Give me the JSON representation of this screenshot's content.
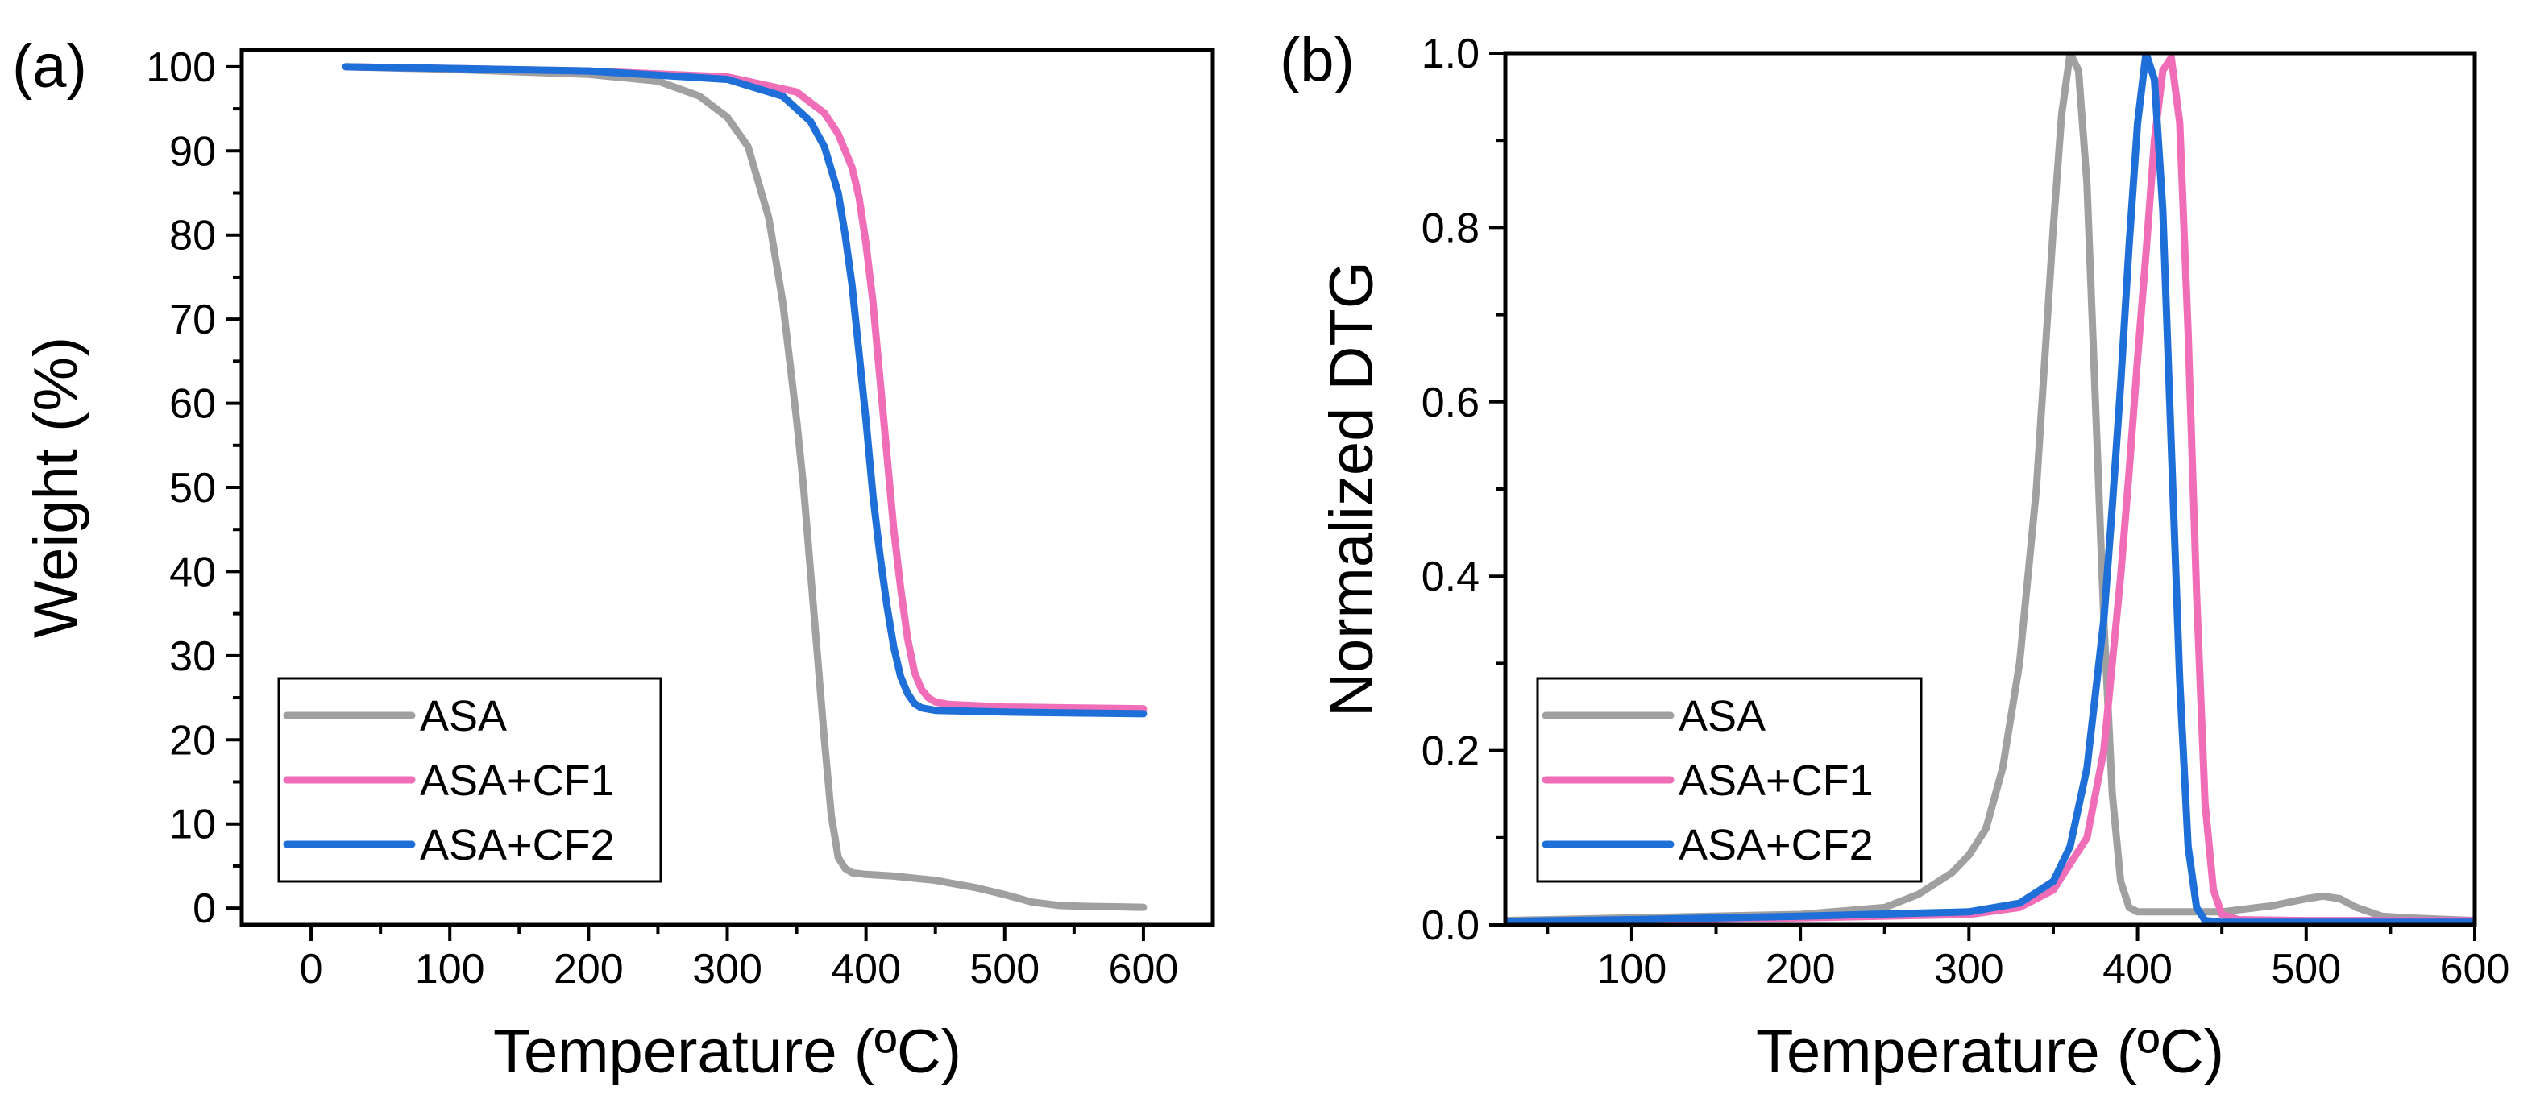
{
  "chart_data": [
    {
      "type": "line",
      "panel_label": "(a)",
      "xlabel": "Temperature (ºC)",
      "ylabel": "Weight (%)",
      "xlim": [
        -50,
        650
      ],
      "ylim": [
        -2,
        102
      ],
      "xticks": [
        0,
        100,
        200,
        300,
        400,
        500,
        600
      ],
      "xtick_labels": [
        "0",
        "100",
        "200",
        "300",
        "400",
        "500",
        "600"
      ],
      "yticks": [
        0,
        10,
        20,
        30,
        40,
        50,
        60,
        70,
        80,
        90,
        100
      ],
      "ytick_labels": [
        "0",
        "10",
        "20",
        "30",
        "40",
        "50",
        "60",
        "70",
        "80",
        "90",
        "100"
      ],
      "legend": "bottom-left",
      "series": [
        {
          "name": "ASA",
          "color": "#A0A0A0",
          "x": [
            25,
            100,
            200,
            250,
            280,
            300,
            315,
            330,
            340,
            350,
            355,
            360,
            365,
            370,
            375,
            380,
            385,
            390,
            400,
            420,
            450,
            480,
            500,
            520,
            540,
            560,
            600
          ],
          "y": [
            100,
            99.7,
            99.1,
            98.3,
            96.5,
            94,
            90.5,
            82,
            72,
            58,
            50,
            40,
            30,
            20,
            11,
            6,
            4.7,
            4.2,
            4,
            3.8,
            3.3,
            2.4,
            1.6,
            0.7,
            0.3,
            0.2,
            0.1
          ]
        },
        {
          "name": "ASA+CF1",
          "color": "#F06EB8",
          "x": [
            25,
            100,
            200,
            300,
            350,
            370,
            380,
            390,
            395,
            400,
            405,
            410,
            415,
            420,
            425,
            430,
            435,
            440,
            445,
            450,
            460,
            500,
            550,
            600
          ],
          "y": [
            100,
            99.8,
            99.5,
            98.8,
            97,
            94.5,
            92,
            88,
            84.5,
            79,
            72,
            63,
            54,
            45,
            38,
            32,
            28,
            26,
            25,
            24.5,
            24.2,
            23.9,
            23.8,
            23.7
          ]
        },
        {
          "name": "ASA+CF2",
          "color": "#1F6FD8",
          "x": [
            25,
            100,
            200,
            300,
            340,
            360,
            370,
            380,
            385,
            390,
            395,
            400,
            405,
            410,
            415,
            420,
            425,
            430,
            435,
            440,
            450,
            500,
            550,
            600
          ],
          "y": [
            100,
            99.8,
            99.5,
            98.5,
            96.5,
            93.5,
            90.5,
            85,
            80,
            74,
            66,
            58,
            49,
            42,
            36,
            31,
            27.5,
            25.5,
            24.3,
            23.8,
            23.5,
            23.3,
            23.2,
            23.1
          ]
        }
      ]
    },
    {
      "type": "line",
      "panel_label": "(b)",
      "xlabel": "Temperature (ºC)",
      "ylabel": "Normalized DTG",
      "xlim": [
        25,
        600
      ],
      "ylim": [
        0,
        1.0
      ],
      "xticks": [
        100,
        200,
        300,
        400,
        500,
        600
      ],
      "xtick_labels": [
        "100",
        "200",
        "300",
        "400",
        "500",
        "600"
      ],
      "yticks": [
        0.0,
        0.2,
        0.4,
        0.6,
        0.8,
        1.0
      ],
      "ytick_labels": [
        "0.0",
        "0.2",
        "0.4",
        "0.6",
        "0.8",
        "1.0"
      ],
      "legend": "bottom-left",
      "series": [
        {
          "name": "ASA",
          "color": "#A0A0A0",
          "x": [
            25,
            100,
            200,
            250,
            270,
            290,
            300,
            310,
            320,
            330,
            340,
            345,
            350,
            355,
            360,
            365,
            370,
            375,
            380,
            385,
            390,
            395,
            400,
            410,
            450,
            480,
            500,
            510,
            520,
            530,
            545,
            560,
            600
          ],
          "y": [
            0.005,
            0.008,
            0.012,
            0.02,
            0.035,
            0.06,
            0.08,
            0.11,
            0.18,
            0.3,
            0.5,
            0.65,
            0.8,
            0.93,
            1.0,
            0.98,
            0.85,
            0.6,
            0.35,
            0.15,
            0.05,
            0.02,
            0.015,
            0.015,
            0.015,
            0.022,
            0.03,
            0.033,
            0.03,
            0.02,
            0.01,
            0.008,
            0.005
          ]
        },
        {
          "name": "ASA+CF1",
          "color": "#F06EB8",
          "x": [
            25,
            100,
            200,
            300,
            330,
            350,
            370,
            380,
            390,
            395,
            400,
            405,
            410,
            415,
            420,
            425,
            430,
            435,
            440,
            445,
            450,
            460,
            500,
            550,
            600
          ],
          "y": [
            0.003,
            0.005,
            0.008,
            0.012,
            0.02,
            0.04,
            0.1,
            0.2,
            0.4,
            0.52,
            0.65,
            0.77,
            0.9,
            0.98,
            0.995,
            0.92,
            0.68,
            0.38,
            0.14,
            0.04,
            0.012,
            0.006,
            0.005,
            0.005,
            0.005
          ]
        },
        {
          "name": "ASA+CF2",
          "color": "#1F6FD8",
          "x": [
            25,
            100,
            200,
            300,
            330,
            350,
            360,
            370,
            380,
            385,
            390,
            395,
            400,
            405,
            410,
            415,
            420,
            425,
            430,
            435,
            440,
            450,
            500,
            600
          ],
          "y": [
            0.004,
            0.006,
            0.01,
            0.015,
            0.025,
            0.05,
            0.09,
            0.18,
            0.35,
            0.48,
            0.62,
            0.78,
            0.92,
            1.0,
            0.97,
            0.82,
            0.55,
            0.28,
            0.09,
            0.02,
            0.005,
            0.003,
            0.003,
            0.003
          ]
        }
      ]
    }
  ]
}
